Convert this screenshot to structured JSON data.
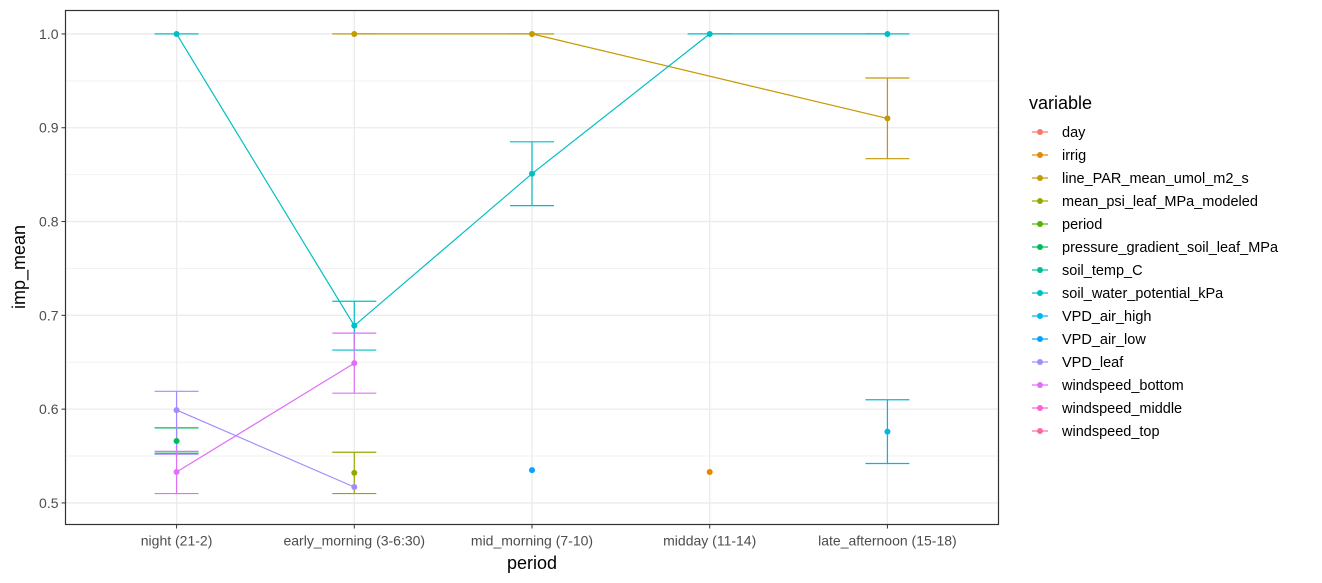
{
  "chart_data": {
    "type": "line",
    "xlabel": "period",
    "ylabel": "imp_mean",
    "categories": [
      "night (21-2)",
      "early_morning (3-6:30)",
      "mid_morning (7-10)",
      "midday (11-14)",
      "late_afternoon (15-18)"
    ],
    "ylim": [
      0.477,
      1.025
    ],
    "yticks": [
      0.5,
      0.6,
      0.7,
      0.8,
      0.9,
      1.0
    ],
    "ytick_labels": [
      "0.5",
      "0.6",
      "0.7",
      "0.8",
      "0.9",
      "1.0"
    ],
    "grid": true,
    "legend": {
      "title": "variable",
      "position": "right"
    },
    "series": [
      {
        "name": "day",
        "color": "#F8766D",
        "points": []
      },
      {
        "name": "irrig",
        "color": "#E38900",
        "points": [
          {
            "x": "midday (11-14)",
            "y": 0.533
          }
        ]
      },
      {
        "name": "line_PAR_mean_umol_m2_s",
        "color": "#C49A00",
        "points": [
          {
            "x": "early_morning (3-6:30)",
            "y": 1.0,
            "lo": 1.0,
            "hi": 1.0
          },
          {
            "x": "mid_morning (7-10)",
            "y": 1.0,
            "lo": 1.0,
            "hi": 1.0
          },
          {
            "x": "late_afternoon (15-18)",
            "y": 0.91,
            "lo": 0.867,
            "hi": 0.953
          }
        ]
      },
      {
        "name": "mean_psi_leaf_MPa_modeled",
        "color": "#99A800",
        "points": [
          {
            "x": "early_morning (3-6:30)",
            "y": 0.532,
            "lo": 0.51,
            "hi": 0.554
          }
        ]
      },
      {
        "name": "period",
        "color": "#53B400",
        "points": []
      },
      {
        "name": "pressure_gradient_soil_leaf_MPa",
        "color": "#00BC56",
        "points": [
          {
            "x": "night (21-2)",
            "y": 0.566,
            "lo": 0.553,
            "hi": 0.58
          }
        ]
      },
      {
        "name": "soil_temp_C",
        "color": "#00C094",
        "points": []
      },
      {
        "name": "soil_water_potential_kPa",
        "color": "#00BFC4",
        "points": [
          {
            "x": "night (21-2)",
            "y": 1.0,
            "lo": 1.0,
            "hi": 1.0
          },
          {
            "x": "early_morning (3-6:30)",
            "y": 0.689,
            "lo": 0.663,
            "hi": 0.715
          },
          {
            "x": "mid_morning (7-10)",
            "y": 0.851,
            "lo": 0.817,
            "hi": 0.885
          },
          {
            "x": "midday (11-14)",
            "y": 1.0,
            "lo": 1.0,
            "hi": 1.0
          },
          {
            "x": "late_afternoon (15-18)",
            "y": 1.0,
            "lo": 1.0,
            "hi": 1.0
          }
        ]
      },
      {
        "name": "VPD_air_high",
        "color": "#00B6EB",
        "points": [
          {
            "x": "late_afternoon (15-18)",
            "y": 0.576,
            "lo": 0.542,
            "hi": 0.61
          }
        ]
      },
      {
        "name": "VPD_air_low",
        "color": "#06A4FF",
        "points": [
          {
            "x": "mid_morning (7-10)",
            "y": 0.535
          }
        ]
      },
      {
        "name": "VPD_leaf",
        "color": "#A58AFF",
        "points": [
          {
            "x": "night (21-2)",
            "y": 0.599,
            "lo": 0.552,
            "hi": 0.619
          },
          {
            "x": "early_morning (3-6:30)",
            "y": 0.517
          }
        ]
      },
      {
        "name": "windspeed_bottom",
        "color": "#DF70F8",
        "points": [
          {
            "x": "night (21-2)",
            "y": 0.533,
            "lo": 0.51,
            "hi": 0.555
          },
          {
            "x": "early_morning (3-6:30)",
            "y": 0.649,
            "lo": 0.617,
            "hi": 0.681
          }
        ]
      },
      {
        "name": "windspeed_middle",
        "color": "#FB61D7",
        "points": []
      },
      {
        "name": "windspeed_top",
        "color": "#FF66A8",
        "points": []
      }
    ]
  }
}
